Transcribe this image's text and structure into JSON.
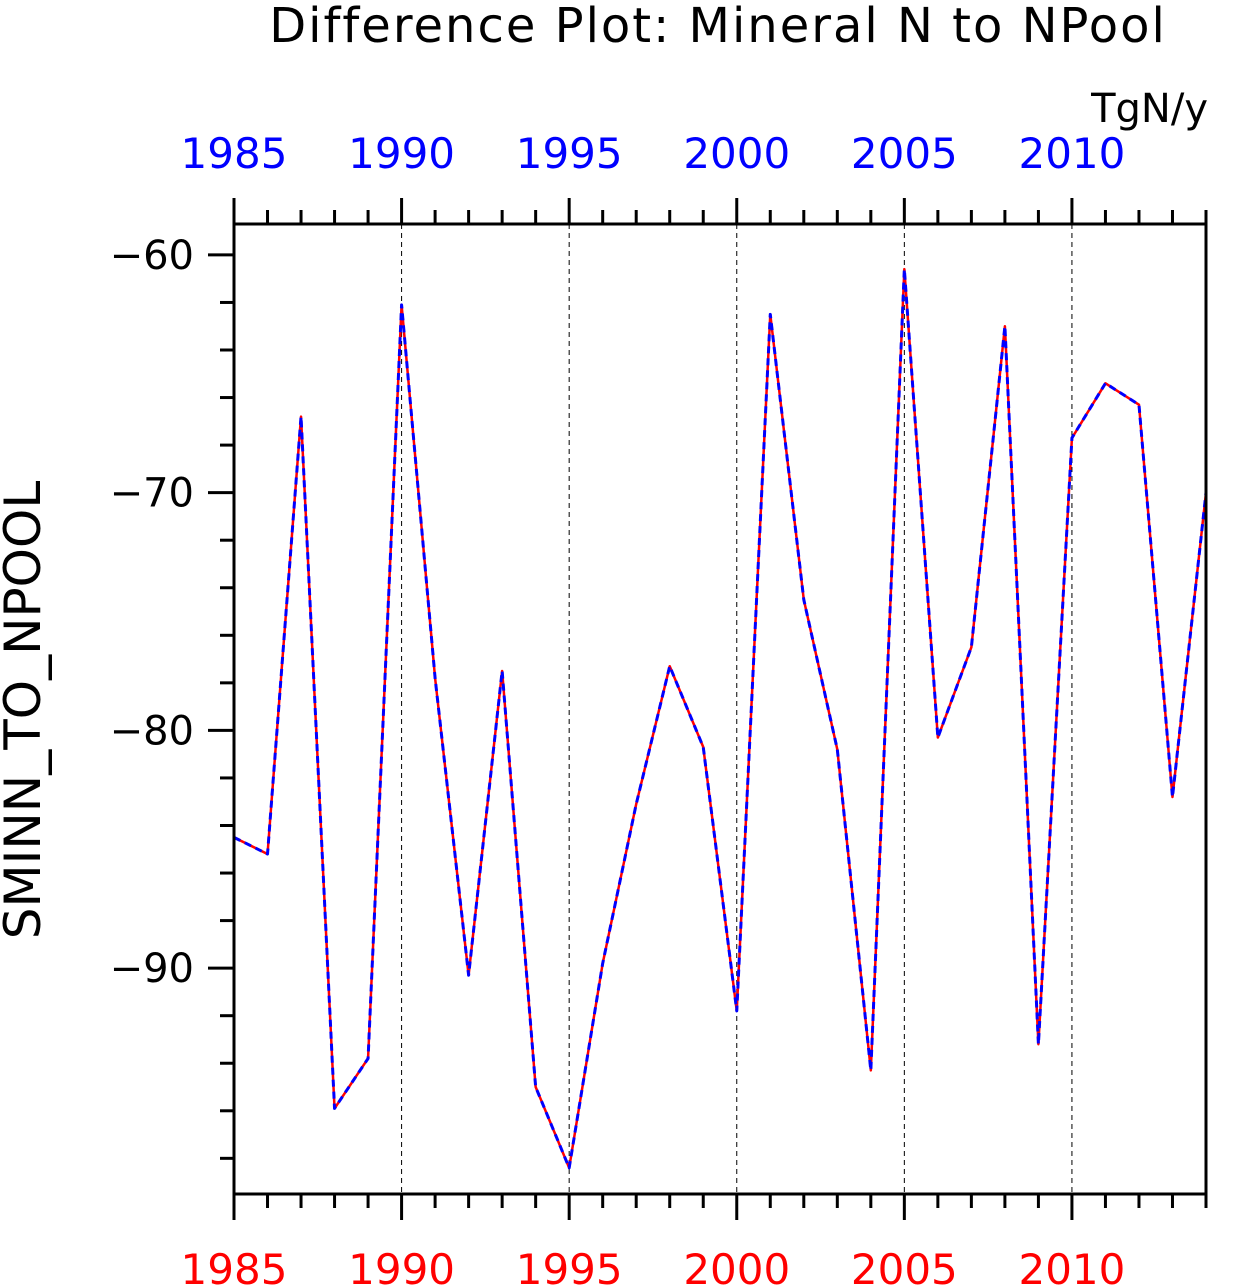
{
  "chart_data": {
    "type": "line",
    "title": "Difference Plot: Mineral N to NPool",
    "units": "TgN/y",
    "ylabel": "SMINN_TO_NPOOL",
    "xlabel": "",
    "xlim": [
      1985,
      2014
    ],
    "ylim": [
      -99.5,
      -58.7
    ],
    "yticks_major": [
      -60,
      -70,
      -80,
      -90
    ],
    "yticks_major_labels": [
      "−60",
      "−70",
      "−80",
      "−90"
    ],
    "yticks_minor": [
      -62,
      -64,
      -66,
      -68,
      -72,
      -74,
      -76,
      -78,
      -82,
      -84,
      -86,
      -88,
      -92,
      -94,
      -96,
      -98
    ],
    "xticks_major": [
      1985,
      1990,
      1995,
      2000,
      2005,
      2010
    ],
    "xticks_major_labels": [
      "1985",
      "1990",
      "1995",
      "2000",
      "2005",
      "2010"
    ],
    "top_axis_color": "#0000ff",
    "bottom_axis_color": "#ff0000",
    "grid": "vertical dashed at major x ticks",
    "x": [
      1985,
      1986,
      1987,
      1988,
      1989,
      1990,
      1991,
      1992,
      1993,
      1994,
      1995,
      1996,
      1997,
      1998,
      1999,
      2000,
      2001,
      2002,
      2003,
      2004,
      2005,
      2006,
      2007,
      2008,
      2009,
      2010,
      2011,
      2012,
      2013,
      2014
    ],
    "series": [
      {
        "color": "#ff0000",
        "style": "solid",
        "values": [
          -84.5,
          -85.2,
          -66.8,
          -95.9,
          -93.8,
          -62.1,
          -77.8,
          -90.3,
          -77.5,
          -95.0,
          -98.4,
          -89.8,
          -83.1,
          -77.3,
          -80.7,
          -91.8,
          -62.5,
          -74.5,
          -80.8,
          -94.3,
          -60.6,
          -80.3,
          -76.5,
          -63.0,
          -93.2,
          -67.7,
          -65.4,
          -66.3,
          -82.8,
          -70.0
        ]
      },
      {
        "color": "#0000ff",
        "style": "dashed",
        "values": [
          -84.5,
          -85.2,
          -66.8,
          -95.9,
          -93.8,
          -62.1,
          -77.8,
          -90.3,
          -77.5,
          -95.0,
          -98.4,
          -89.8,
          -83.1,
          -77.3,
          -80.7,
          -91.8,
          -62.5,
          -74.5,
          -80.8,
          -94.3,
          -60.6,
          -80.3,
          -76.5,
          -63.0,
          -93.2,
          -67.7,
          -65.4,
          -66.3,
          -82.8,
          -70.0
        ]
      }
    ]
  }
}
